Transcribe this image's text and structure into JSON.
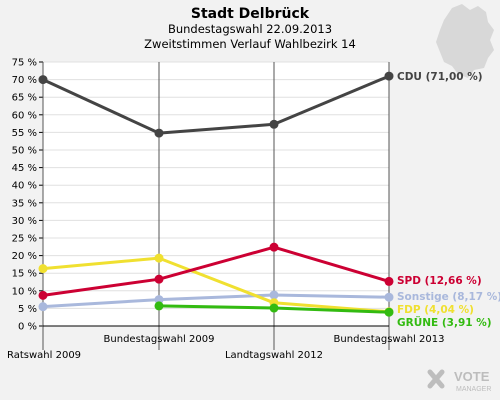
{
  "chart_data": {
    "type": "line",
    "title": "Stadt Delbrück",
    "subtitle1": "Bundestagswahl 22.09.2013",
    "subtitle2": "Zweitstimmen Verlauf Wahlbezirk 14",
    "categories": [
      "Ratswahl 2009",
      "Bundestagswahl 2009",
      "Landtagswahl 2012",
      "Bundestagswahl 2013"
    ],
    "ylim": [
      0,
      75
    ],
    "yticks": [
      0,
      5,
      10,
      15,
      20,
      25,
      30,
      35,
      40,
      45,
      50,
      55,
      60,
      65,
      70,
      75
    ],
    "ytick_labels": [
      "0 %",
      "5 %",
      "10 %",
      "15 %",
      "20 %",
      "25 %",
      "30 %",
      "35 %",
      "40 %",
      "45 %",
      "50 %",
      "55 %",
      "60 %",
      "65 %",
      "70 %",
      "75 %"
    ],
    "series": [
      {
        "key": "sonstige",
        "label": "Sonstige (8,17 %)",
        "color": "#a9b8dc",
        "values": [
          5.5,
          7.5,
          8.8,
          8.17
        ]
      },
      {
        "key": "fdp",
        "label": "FDP (4,04 %)",
        "color": "#f0e030",
        "values": [
          16.3,
          19.3,
          6.6,
          4.04
        ]
      },
      {
        "key": "spd",
        "label": "SPD (12,66 %)",
        "color": "#cc0033",
        "values": [
          8.7,
          13.3,
          22.4,
          12.66
        ]
      },
      {
        "key": "gruene",
        "label": "GRÜNE (3,91 %)",
        "color": "#33bb11",
        "values": [
          null,
          5.7,
          5.1,
          3.91
        ]
      },
      {
        "key": "cdu",
        "label": "CDU (71,00 %)",
        "color": "#444444",
        "values": [
          70.0,
          54.8,
          57.3,
          71.0
        ]
      }
    ]
  },
  "logo": {
    "text1": "VOTE",
    "text2": "MANAGER"
  }
}
